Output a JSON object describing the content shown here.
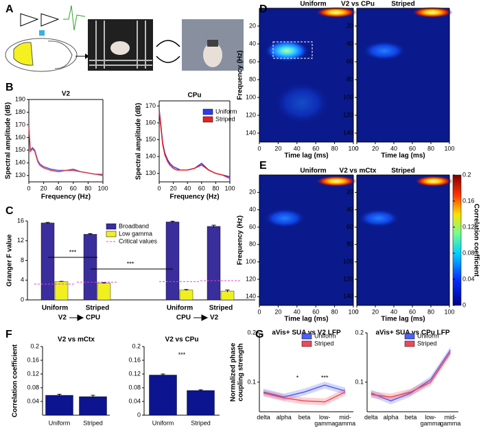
{
  "panel_labels": [
    "A",
    "B",
    "C",
    "D",
    "E",
    "F",
    "G"
  ],
  "chart_data": [
    {
      "type": "line",
      "title": "V2",
      "xlabel": "Frequency (Hz)",
      "ylabel": "Spectral amplitude (dB)",
      "x": [
        0,
        2,
        5,
        8,
        10,
        12,
        15,
        20,
        25,
        30,
        40,
        50,
        60,
        70,
        80,
        90,
        100
      ],
      "series": [
        {
          "color": "#4a5cf0",
          "values": [
            170,
            150,
            152,
            150,
            146,
            142,
            139,
            137,
            136,
            135,
            134,
            134,
            135,
            133,
            132,
            131,
            130
          ]
        },
        {
          "color": "#e04048",
          "values": [
            169,
            149,
            151,
            149,
            145,
            141,
            138,
            136,
            135,
            134,
            133,
            134,
            134,
            133,
            132,
            131,
            131
          ]
        }
      ],
      "xlim": [
        0,
        100
      ],
      "xticks": [
        0,
        20,
        40,
        60,
        80,
        100
      ],
      "ylim": [
        125,
        190
      ],
      "yticks": [
        130,
        140,
        150,
        160,
        170,
        180,
        190
      ]
    },
    {
      "type": "line",
      "title": "CPu",
      "xlabel": "Frequency (Hz)",
      "ylabel": "Spectral amplitude (dB)",
      "x": [
        0,
        2,
        5,
        8,
        10,
        12,
        15,
        20,
        25,
        30,
        40,
        50,
        60,
        70,
        80,
        90,
        100
      ],
      "series": [
        {
          "name": "Uniform",
          "color": "#2a3cf0",
          "values": [
            168,
            160,
            148,
            142,
            140,
            138,
            136,
            134,
            133,
            132,
            132,
            133,
            136,
            132,
            130,
            129,
            128
          ]
        },
        {
          "name": "Striped",
          "color": "#e82020",
          "values": [
            167,
            159,
            147,
            141,
            139,
            137,
            135,
            133,
            132,
            132,
            132,
            133,
            135,
            132,
            130,
            129,
            127
          ]
        }
      ],
      "xlim": [
        0,
        100
      ],
      "xticks": [
        0,
        20,
        40,
        60,
        80,
        100
      ],
      "ylim": [
        125,
        173
      ],
      "yticks": [
        130,
        140,
        150,
        160,
        170
      ]
    },
    {
      "type": "bar",
      "ylabel": "Granger F value",
      "categories": [
        "Uniform",
        "Striped",
        "Uniform",
        "Striped"
      ],
      "groups": [
        [
          "V2",
          "CPU"
        ],
        [
          "CPU",
          "V2"
        ]
      ],
      "series": [
        {
          "name": "Broadband",
          "color": "#3a2d9c",
          "values": [
            15.6,
            13.3,
            15.8,
            14.9
          ],
          "errors": [
            0.1,
            0.15,
            0.15,
            0.25
          ]
        },
        {
          "name": "Low gamma",
          "color": "#f0f020",
          "values": [
            3.7,
            3.4,
            2.0,
            1.8
          ],
          "errors": [
            0.05,
            0.1,
            0.1,
            0.2
          ]
        },
        {
          "name": "Critical values",
          "color": "#e040e0",
          "style": "dashed",
          "values": [
            3.2,
            3.6,
            3.7,
            3.9
          ]
        }
      ],
      "annotations": [
        "***",
        "***"
      ],
      "ylim": [
        0,
        16
      ],
      "yticks": [
        0,
        4,
        8,
        12,
        16
      ]
    },
    {
      "type": "heatmap",
      "title": "V2 vs CPu",
      "panels": [
        "Uniform",
        "Striped"
      ],
      "xlabel": "Time lag (ms)",
      "ylabel": "Frequency (Hz)",
      "xlim": [
        0,
        100
      ],
      "xticks": [
        0,
        20,
        40,
        60,
        80,
        100
      ],
      "ylim": [
        0,
        150
      ],
      "invert_y": true,
      "yticks": [
        20,
        40,
        60,
        80,
        100,
        120,
        140
      ]
    },
    {
      "type": "heatmap",
      "title": "V2 vs mCtx",
      "panels": [
        "Uniform",
        "Striped"
      ],
      "xlabel": "Time lag (ms)",
      "ylabel": "Frequency (Hz)",
      "xlim": [
        0,
        100
      ],
      "xticks": [
        0,
        20,
        40,
        60,
        80,
        100
      ],
      "ylim": [
        0,
        150
      ],
      "invert_y": true,
      "yticks": [
        20,
        40,
        60,
        80,
        100,
        120,
        140
      ],
      "colorbar": {
        "label": "Correlation coefficient",
        "lim": [
          0,
          0.2
        ],
        "ticks": [
          0,
          0.04,
          0.08,
          0.12,
          0.16,
          0.2
        ]
      }
    },
    {
      "type": "bar",
      "title": "V2 vs mCtx",
      "ylabel": "Correlation coefficient",
      "categories": [
        "Uniform",
        "Striped"
      ],
      "series": [
        {
          "color": "#0c1490",
          "values": [
            0.058,
            0.054
          ],
          "errors": [
            0.003,
            0.004
          ]
        }
      ],
      "ylim": [
        0,
        0.2
      ],
      "yticks": [
        0.04,
        0.08,
        0.12,
        0.16,
        0.2
      ]
    },
    {
      "type": "bar",
      "title": "V2 vs CPu",
      "categories": [
        "Uniform",
        "Striped"
      ],
      "series": [
        {
          "color": "#0c1490",
          "values": [
            0.117,
            0.072
          ],
          "errors": [
            0.003,
            0.002
          ]
        }
      ],
      "annotations": [
        "***"
      ],
      "ylim": [
        0,
        0.2
      ],
      "yticks": [
        0,
        0.04,
        0.08,
        0.12,
        0.16,
        0.2
      ]
    },
    {
      "type": "line",
      "title": "aVis+ SUA vs V2 LFP",
      "ylabel": [
        "Normalized phase",
        "coupling strength"
      ],
      "categories": [
        "delta",
        "alpha",
        "beta",
        "low-gamma",
        "mid-gamma"
      ],
      "series": [
        {
          "name": "Uniform",
          "color": "#5060f0",
          "values": [
            0.08,
            0.07,
            0.08,
            0.094,
            0.082
          ]
        },
        {
          "name": "Striped",
          "color": "#f04858",
          "values": [
            0.078,
            0.068,
            0.062,
            0.06,
            0.08
          ]
        }
      ],
      "annotations": [
        "*",
        "***"
      ],
      "ylim": [
        0.04,
        0.2
      ],
      "yticks": [
        0.1,
        0.2
      ]
    },
    {
      "type": "line",
      "title": "aVis+ SUA vs CPu LFP",
      "categories": [
        "delta",
        "alpha",
        "beta",
        "low-gamma",
        "mid-gamma"
      ],
      "series": [
        {
          "name": "Uniform",
          "color": "#5060f0",
          "values": [
            0.078,
            0.062,
            0.078,
            0.105,
            0.165
          ]
        },
        {
          "name": "Striped",
          "color": "#f04858",
          "values": [
            0.075,
            0.07,
            0.08,
            0.1,
            0.16
          ]
        }
      ],
      "ylim": [
        0.04,
        0.2
      ],
      "yticks": [
        0.1,
        0.2
      ]
    }
  ]
}
